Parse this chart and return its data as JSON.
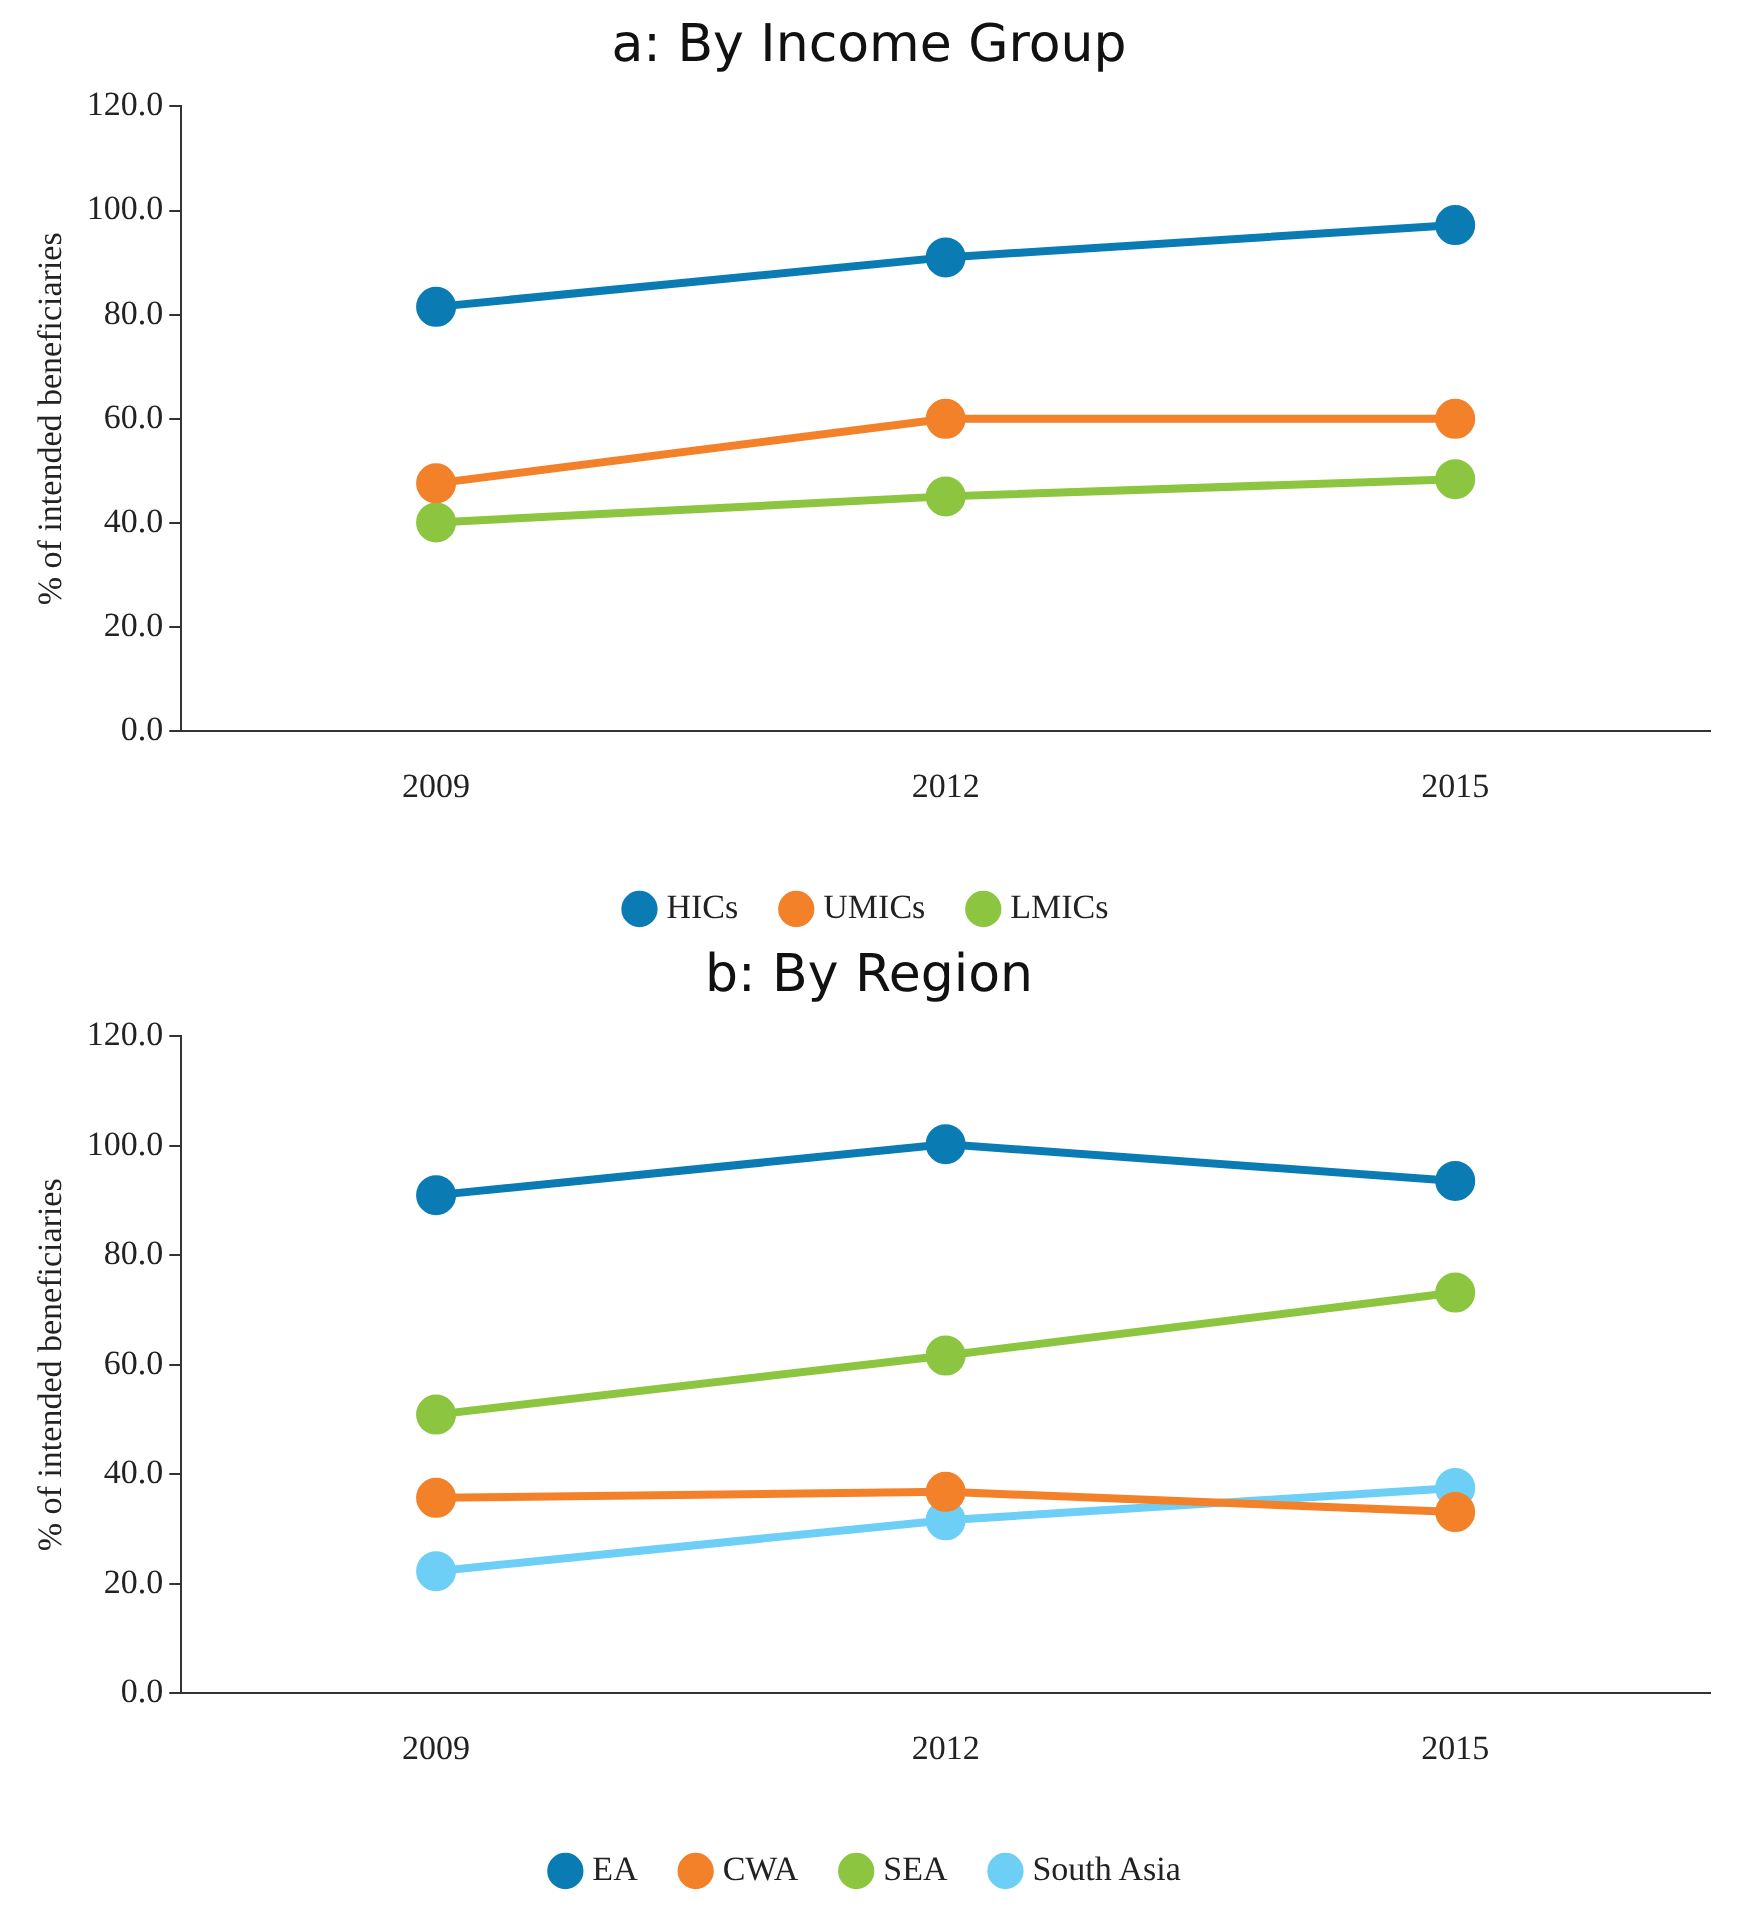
{
  "chart_data": [
    {
      "type": "line",
      "title": "a: By Income Group",
      "ylabel": "% of intended beneficiaries",
      "categories": [
        "2009",
        "2012",
        "2015"
      ],
      "series": [
        {
          "name": "HICs",
          "color": "#0a7bb3",
          "values": [
            81.5,
            91.0,
            97.2
          ]
        },
        {
          "name": "UMICs",
          "color": "#f38129",
          "values": [
            47.6,
            60.0,
            60.0
          ]
        },
        {
          "name": "LMICs",
          "color": "#8cc540",
          "values": [
            40.1,
            45.1,
            48.4
          ]
        }
      ],
      "ylim": [
        0,
        120
      ],
      "yticks": [
        {
          "value": 0,
          "label": "0.0"
        },
        {
          "value": 20,
          "label": "20.0"
        },
        {
          "value": 40,
          "label": "40.0"
        },
        {
          "value": 60,
          "label": "60.0"
        },
        {
          "value": 80,
          "label": "80.0"
        },
        {
          "value": 100,
          "label": "100.0"
        },
        {
          "value": 120,
          "label": "120.0"
        }
      ],
      "grid": false,
      "legend": "bottom",
      "marker": "circle",
      "line_style": "solid"
    },
    {
      "type": "line",
      "title": "b: By Region",
      "ylabel": "% of intended beneficiaries",
      "categories": [
        "2009",
        "2012",
        "2015"
      ],
      "series": [
        {
          "name": "EA",
          "color": "#0a7bb3",
          "values": [
            91.0,
            100.3,
            93.6
          ]
        },
        {
          "name": "CWA",
          "color": "#f38129",
          "values": [
            35.7,
            36.8,
            33.1
          ]
        },
        {
          "name": "SEA",
          "color": "#8cc540",
          "values": [
            50.9,
            61.7,
            73.2
          ]
        },
        {
          "name": "South Asia",
          "color": "#6dcff6",
          "values": [
            22.3,
            31.6,
            37.5
          ]
        }
      ],
      "ylim": [
        0,
        120
      ],
      "yticks": [
        {
          "value": 0,
          "label": "0.0"
        },
        {
          "value": 20,
          "label": "20.0"
        },
        {
          "value": 40,
          "label": "40.0"
        },
        {
          "value": 60,
          "label": "60.0"
        },
        {
          "value": 80,
          "label": "80.0"
        },
        {
          "value": 100,
          "label": "100.0"
        },
        {
          "value": 120,
          "label": "120.0"
        }
      ],
      "grid": false,
      "legend": "bottom",
      "marker": "circle",
      "line_style": "solid"
    }
  ]
}
